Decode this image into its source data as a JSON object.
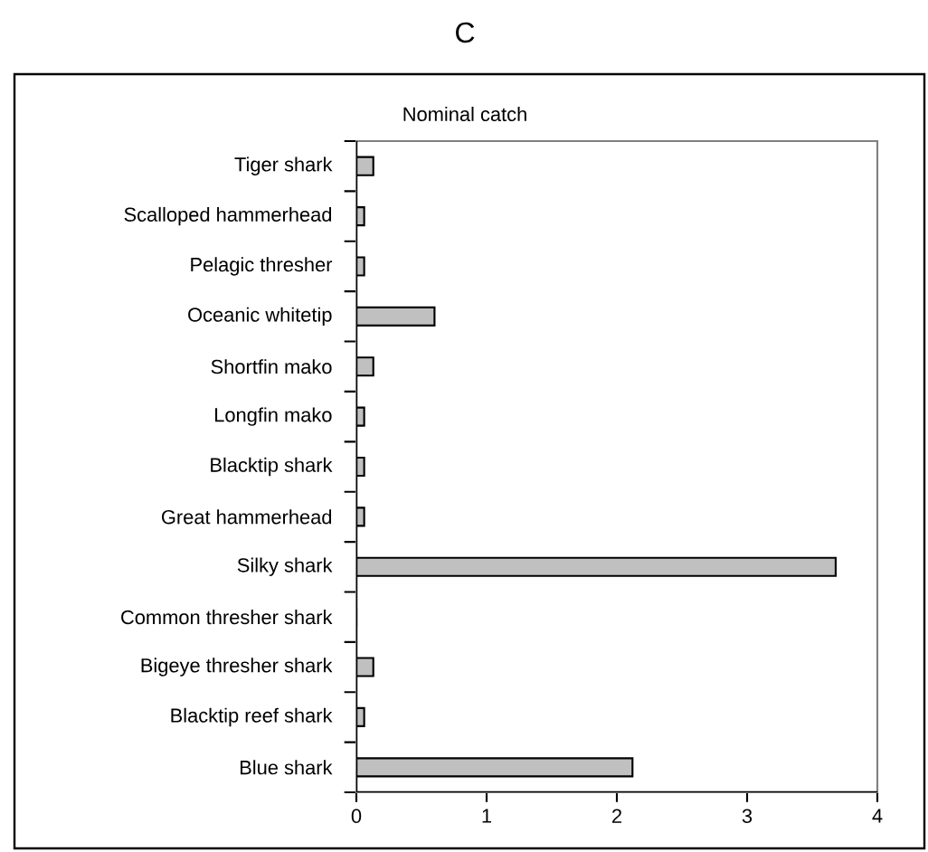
{
  "chart_data": {
    "type": "bar",
    "orientation": "horizontal",
    "title": "C",
    "subtitle": "Nominal catch",
    "categories": [
      "Tiger shark",
      "Scalloped hammerhead",
      "Pelagic thresher",
      "Oceanic whitetip",
      "Shortfin mako",
      "Longfin mako",
      "Blacktip shark",
      "Great hammerhead",
      "Silky shark",
      "Common thresher shark",
      "Bigeye thresher shark",
      "Blacktip reef shark",
      "Blue shark"
    ],
    "values": [
      0.13,
      0.06,
      0.06,
      0.6,
      0.13,
      0.06,
      0.06,
      0.06,
      3.68,
      0,
      0.13,
      0.06,
      2.12
    ],
    "color": "#c0c0c0",
    "xlim": [
      0,
      4
    ],
    "xticks": [
      0,
      1,
      2,
      3,
      4
    ]
  }
}
